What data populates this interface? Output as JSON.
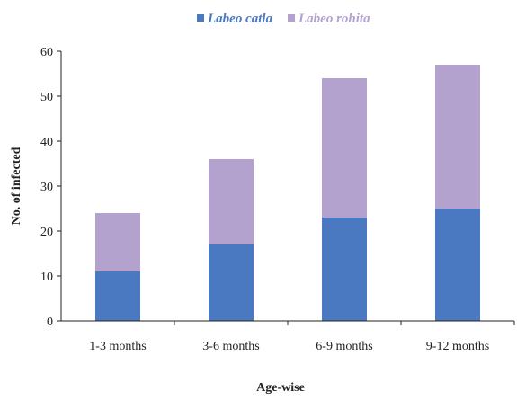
{
  "chart_data": {
    "type": "bar",
    "stacked": true,
    "title": "",
    "xlabel": "Age-wise",
    "ylabel": "No. of infected",
    "categories": [
      "1-3 months",
      "3-6 months",
      "6-9 months",
      "9-12 months"
    ],
    "series": [
      {
        "name": "Labeo catla",
        "values": [
          11,
          17,
          23,
          25
        ],
        "color": "#4a79c2"
      },
      {
        "name": "Labeo rohita",
        "values": [
          13,
          19,
          31,
          32
        ],
        "color": "#b3a2cd"
      }
    ],
    "ylim": [
      0,
      60
    ],
    "yticks": [
      "0",
      "10",
      "20",
      "30",
      "40",
      "50",
      "60"
    ],
    "grid": false,
    "legend": "top-center"
  }
}
